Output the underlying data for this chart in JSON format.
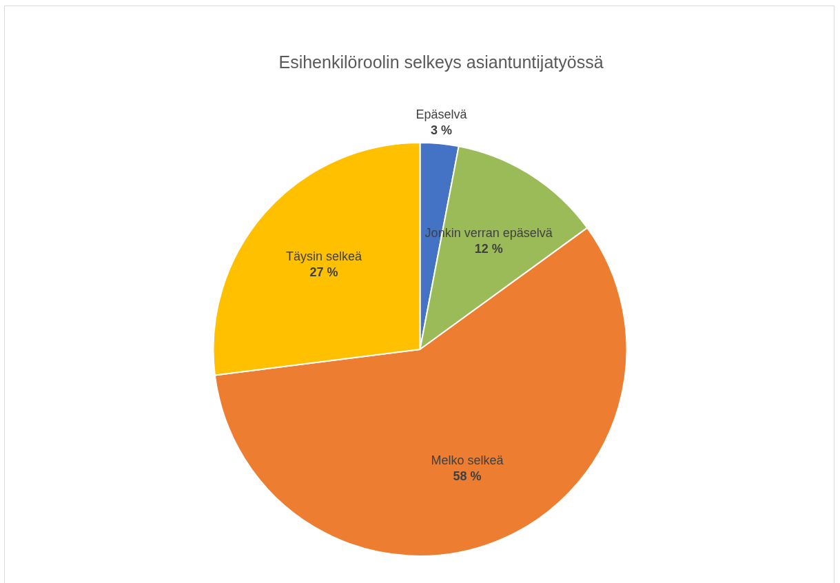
{
  "chart_data": {
    "type": "pie",
    "title": "Esihenkilöroolin selkeys asiantuntijatyössä",
    "categories": [
      "Epäselvä",
      "Jonkin verran epäselvä",
      "Melko selkeä",
      "Täysin selkeä"
    ],
    "values": [
      3,
      12,
      58,
      27
    ],
    "colors": [
      "#4472c4",
      "#9bbb59",
      "#ed7d31",
      "#ffc000"
    ],
    "value_labels": [
      "3 %",
      "12 %",
      "58 %",
      "27 %"
    ],
    "legend": false
  }
}
